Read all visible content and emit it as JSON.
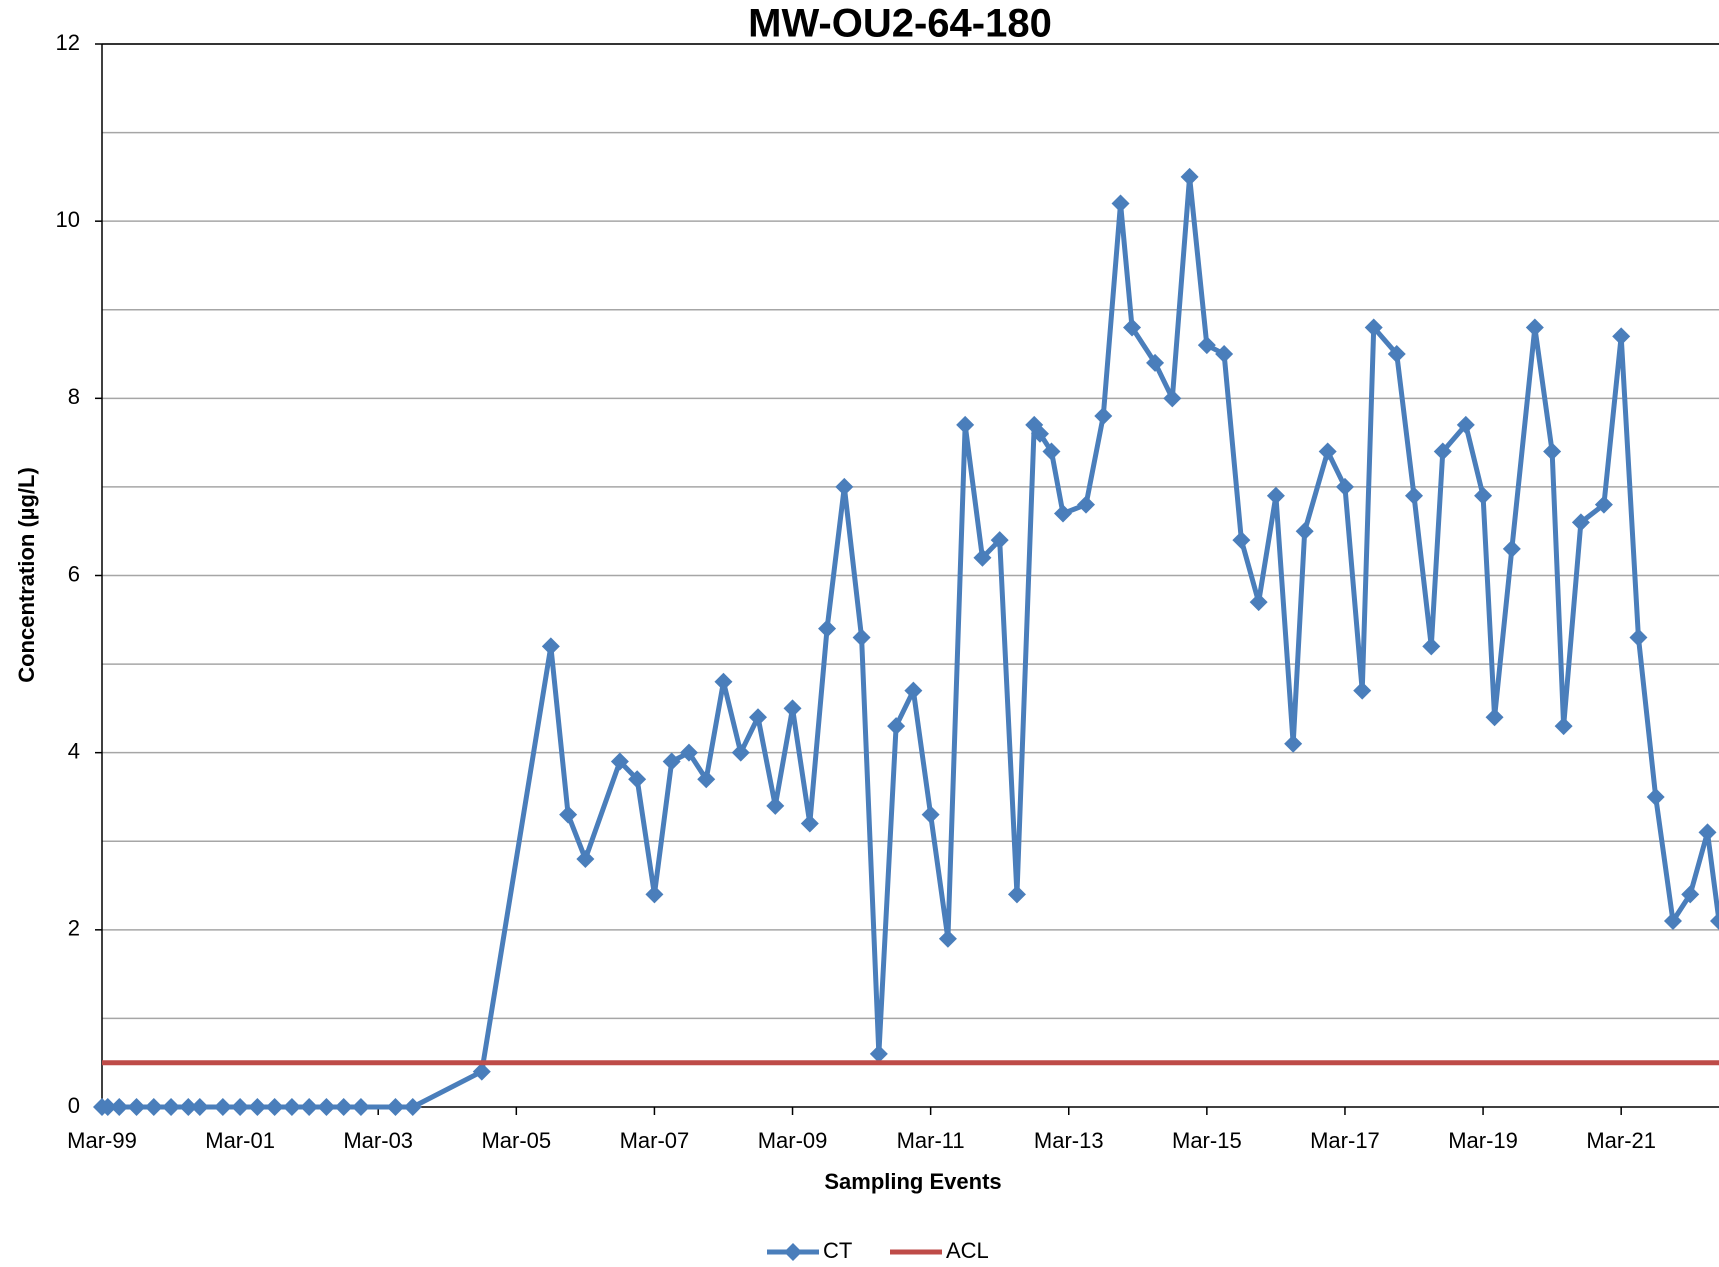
{
  "chart_data": {
    "type": "line",
    "title": "MW-OU2-64-180",
    "x_label": "Sampling Events",
    "y_label": "Concentration (µg/L)",
    "xlim": [
      "1999-03",
      "2022-08"
    ],
    "xticks": [
      {
        "value": "1999-03",
        "label": "Mar-99"
      },
      {
        "value": "2001-03",
        "label": "Mar-01"
      },
      {
        "value": "2003-03",
        "label": "Mar-03"
      },
      {
        "value": "2005-03",
        "label": "Mar-05"
      },
      {
        "value": "2007-03",
        "label": "Mar-07"
      },
      {
        "value": "2009-03",
        "label": "Mar-09"
      },
      {
        "value": "2011-03",
        "label": "Mar-11"
      },
      {
        "value": "2013-03",
        "label": "Mar-13"
      },
      {
        "value": "2015-03",
        "label": "Mar-15"
      },
      {
        "value": "2017-03",
        "label": "Mar-17"
      },
      {
        "value": "2019-03",
        "label": "Mar-19"
      },
      {
        "value": "2021-03",
        "label": "Mar-21"
      }
    ],
    "ylim": [
      0,
      12
    ],
    "yticks": [
      0,
      2,
      4,
      6,
      8,
      10,
      12
    ],
    "grid": true,
    "legend": "bottom",
    "series": [
      {
        "name": "CT",
        "color": "#4a7ebb",
        "marker": "diamond",
        "x": [
          "1999-03",
          "1999-04",
          "1999-06",
          "1999-09",
          "1999-12",
          "2000-03",
          "2000-06",
          "2000-08",
          "2000-12",
          "2001-03",
          "2001-06",
          "2001-09",
          "2001-12",
          "2002-03",
          "2002-06",
          "2002-09",
          "2002-12",
          "2003-06",
          "2003-09",
          "2004-09",
          "2005-09",
          "2005-12",
          "2006-03",
          "2006-09",
          "2006-12",
          "2007-03",
          "2007-06",
          "2007-09",
          "2007-12",
          "2008-03",
          "2008-06",
          "2008-09",
          "2008-12",
          "2009-03",
          "2009-06",
          "2009-09",
          "2009-12",
          "2010-03",
          "2010-06",
          "2010-09",
          "2010-12",
          "2011-03",
          "2011-06",
          "2011-09",
          "2011-12",
          "2012-03",
          "2012-06",
          "2012-09",
          "2012-10",
          "2012-12",
          "2013-02",
          "2013-06",
          "2013-09",
          "2013-12",
          "2014-02",
          "2014-06",
          "2014-09",
          "2014-12",
          "2015-03",
          "2015-06",
          "2015-09",
          "2015-12",
          "2016-03",
          "2016-06",
          "2016-08",
          "2016-12",
          "2017-03",
          "2017-06",
          "2017-08",
          "2017-12",
          "2018-03",
          "2018-06",
          "2018-08",
          "2018-12",
          "2019-03",
          "2019-05",
          "2019-08",
          "2019-12",
          "2020-03",
          "2020-05",
          "2020-08",
          "2020-12",
          "2021-03",
          "2021-06",
          "2021-09",
          "2021-12",
          "2022-03",
          "2022-06",
          "2022-08"
        ],
        "values": [
          0,
          0,
          0,
          0,
          0,
          0,
          0,
          0,
          0,
          0,
          0,
          0,
          0,
          0,
          0,
          0,
          0,
          0,
          0,
          0.4,
          5.2,
          3.3,
          2.8,
          3.9,
          3.7,
          2.4,
          3.9,
          4.0,
          3.7,
          4.8,
          4.0,
          4.4,
          3.4,
          4.5,
          3.2,
          5.4,
          7.0,
          5.3,
          0.6,
          4.3,
          4.7,
          3.3,
          1.9,
          7.7,
          6.2,
          6.4,
          2.4,
          7.7,
          7.6,
          7.4,
          6.7,
          6.8,
          7.8,
          10.2,
          8.8,
          8.4,
          8.0,
          10.5,
          8.6,
          8.5,
          6.4,
          5.7,
          6.9,
          4.1,
          6.5,
          7.4,
          7.0,
          4.7,
          8.8,
          8.5,
          6.9,
          5.2,
          7.4,
          7.7,
          6.9,
          4.4,
          6.3,
          8.8,
          7.4,
          4.3,
          6.6,
          6.8,
          8.7,
          5.3,
          3.5,
          2.1,
          2.4,
          3.1,
          2.1
        ]
      },
      {
        "name": "ACL",
        "color": "#be4b48",
        "x": [
          "1999-03",
          "2022-08"
        ],
        "values": [
          0.5,
          0.5
        ]
      }
    ]
  }
}
